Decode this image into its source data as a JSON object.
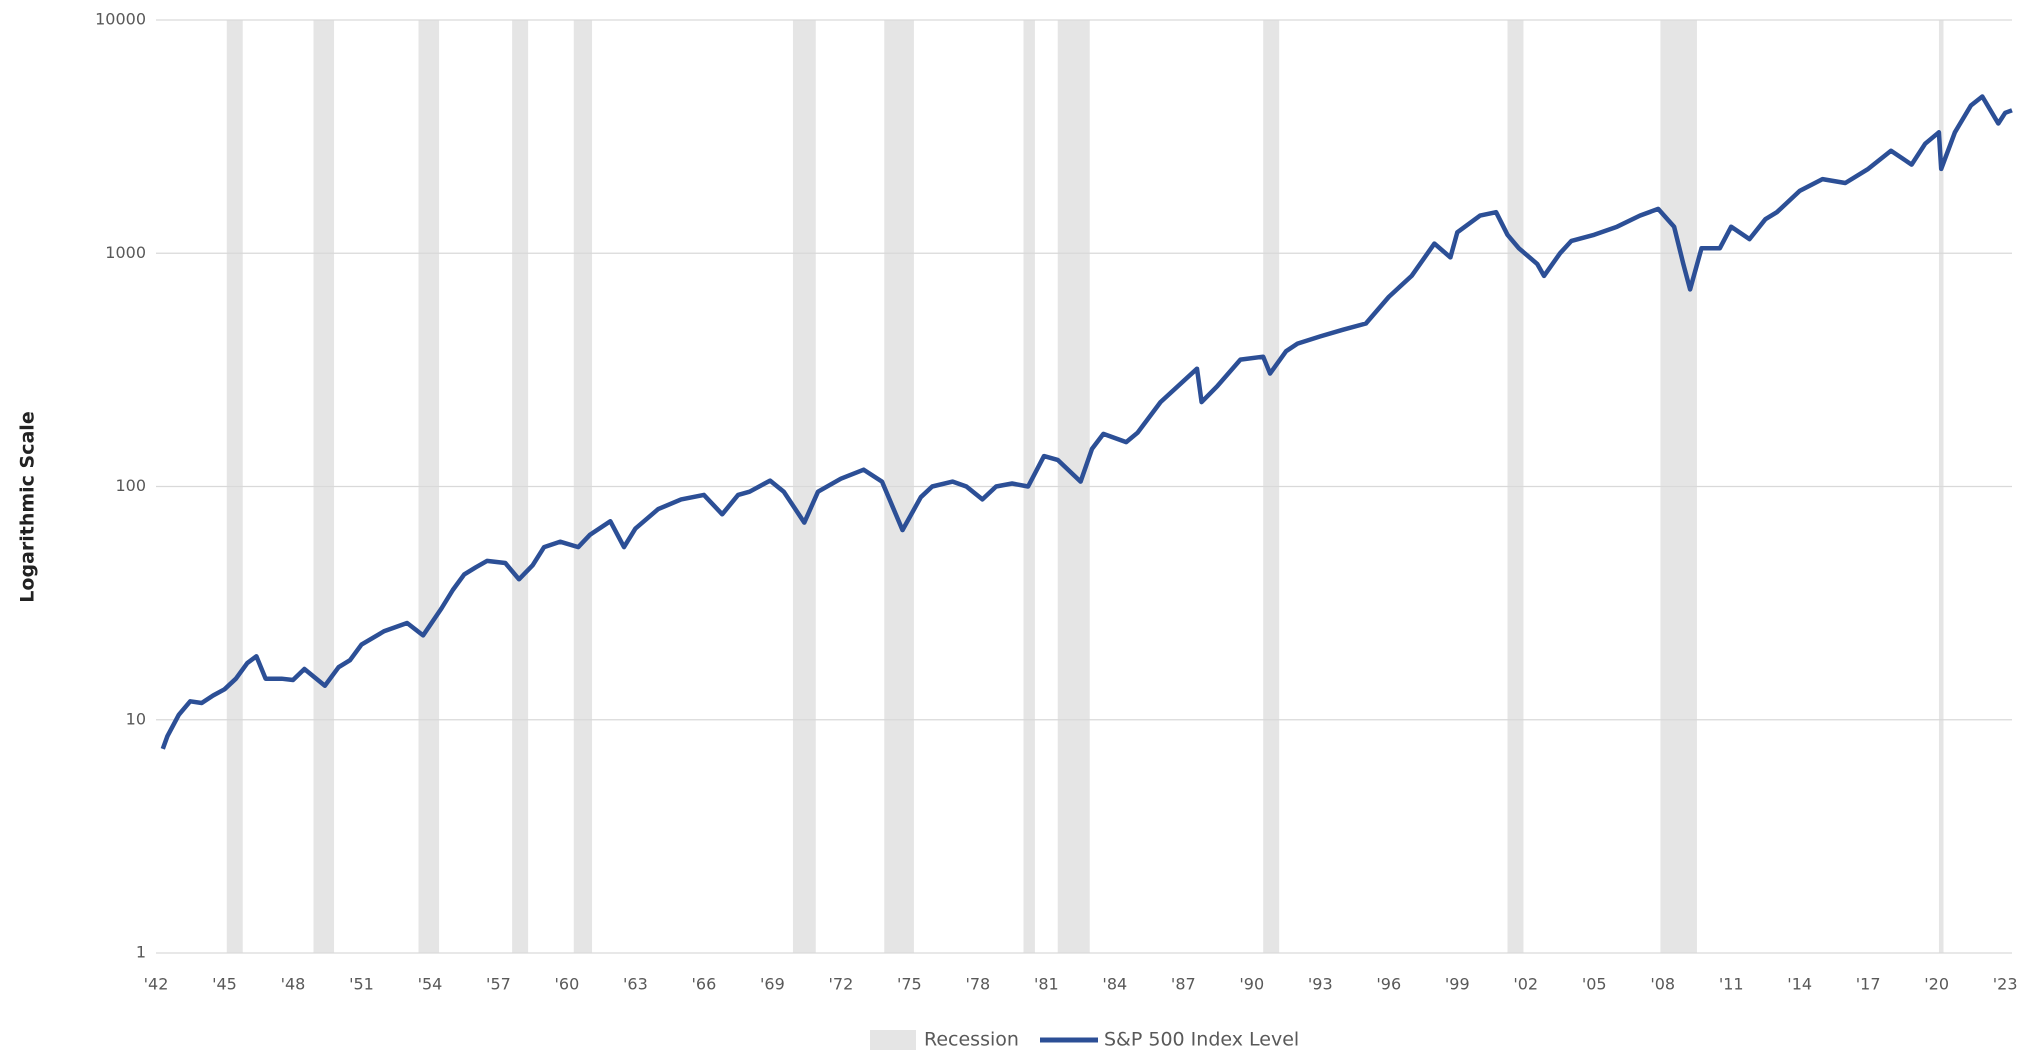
{
  "chart_data": {
    "type": "line",
    "y_label": "Logarithmic Scale",
    "log_y": true,
    "grid": true,
    "legend": "bottom",
    "ylim": [
      1,
      10000
    ],
    "yticks": [
      1,
      10,
      100,
      1000,
      10000
    ],
    "xlim": [
      1942,
      2023.3
    ],
    "xticks": [
      {
        "value": 1942,
        "label": "'42"
      },
      {
        "value": 1945,
        "label": "'45"
      },
      {
        "value": 1948,
        "label": "'48"
      },
      {
        "value": 1951,
        "label": "'51"
      },
      {
        "value": 1954,
        "label": "'54"
      },
      {
        "value": 1957,
        "label": "'57"
      },
      {
        "value": 1960,
        "label": "'60"
      },
      {
        "value": 1963,
        "label": "'63"
      },
      {
        "value": 1966,
        "label": "'66"
      },
      {
        "value": 1969,
        "label": "'69"
      },
      {
        "value": 1972,
        "label": "'72"
      },
      {
        "value": 1975,
        "label": "'75"
      },
      {
        "value": 1978,
        "label": "'78"
      },
      {
        "value": 1981,
        "label": "'81"
      },
      {
        "value": 1984,
        "label": "'84"
      },
      {
        "value": 1987,
        "label": "'87"
      },
      {
        "value": 1990,
        "label": "'90"
      },
      {
        "value": 1993,
        "label": "'93"
      },
      {
        "value": 1996,
        "label": "'96"
      },
      {
        "value": 1999,
        "label": "'99"
      },
      {
        "value": 2002,
        "label": "'02"
      },
      {
        "value": 2005,
        "label": "'05"
      },
      {
        "value": 2008,
        "label": "'08"
      },
      {
        "value": 2011,
        "label": "'11"
      },
      {
        "value": 2014,
        "label": "'14"
      },
      {
        "value": 2017,
        "label": "'17"
      },
      {
        "value": 2020,
        "label": "'20"
      },
      {
        "value": 2023,
        "label": "'23"
      }
    ],
    "recessions": {
      "name": "Recession",
      "color": "#e5e5e5",
      "bands": [
        [
          1945.1,
          1945.8
        ],
        [
          1948.9,
          1949.8
        ],
        [
          1953.5,
          1954.4
        ],
        [
          1957.6,
          1958.3
        ],
        [
          1960.3,
          1961.1
        ],
        [
          1969.9,
          1970.9
        ],
        [
          1973.9,
          1975.2
        ],
        [
          1980.0,
          1980.5
        ],
        [
          1981.5,
          1982.9
        ],
        [
          1990.5,
          1991.2
        ],
        [
          2001.2,
          2001.9
        ],
        [
          2007.9,
          2009.5
        ],
        [
          2020.1,
          2020.3
        ]
      ]
    },
    "x": [
      1942.3,
      1942.5,
      1943,
      1943.5,
      1944,
      1944.5,
      1945,
      1945.5,
      1946,
      1946.4,
      1946.8,
      1947.5,
      1948,
      1948.5,
      1949.4,
      1950,
      1950.5,
      1951,
      1952,
      1953,
      1953.7,
      1954.5,
      1955,
      1955.5,
      1956,
      1956.5,
      1957.3,
      1957.9,
      1958.5,
      1959,
      1959.7,
      1960.5,
      1961,
      1961.9,
      1962.5,
      1963,
      1964,
      1965,
      1966,
      1966.8,
      1967.5,
      1968,
      1968.9,
      1969.5,
      1970.4,
      1971,
      1972,
      1973,
      1973.8,
      1974.7,
      1975.5,
      1976,
      1976.9,
      1977.5,
      1978.2,
      1978.8,
      1979.5,
      1980.2,
      1980.9,
      1981.5,
      1982.5,
      1983,
      1983.5,
      1984.5,
      1985,
      1986,
      1987.6,
      1987.8,
      1988.5,
      1989.5,
      1990.5,
      1990.8,
      1991.5,
      1992,
      1993,
      1994,
      1995,
      1996,
      1997,
      1998,
      1998.7,
      1999,
      2000,
      2000.7,
      2001.2,
      2001.7,
      2002.5,
      2002.8,
      2003.5,
      2004,
      2005,
      2006,
      2007,
      2007.8,
      2008.5,
      2008.9,
      2009.2,
      2009.7,
      2010.5,
      2011,
      2011.8,
      2012.5,
      2013,
      2014,
      2015,
      2016,
      2017,
      2018,
      2018.9,
      2019.5,
      2020.1,
      2020.2,
      2020.8,
      2021.5,
      2022,
      2022.7,
      2023,
      2023.3
    ],
    "series": [
      {
        "name": "S&P 500 Index Level",
        "color": "#2c4f96",
        "values": [
          7.5,
          8.5,
          10.5,
          12,
          11.8,
          12.7,
          13.5,
          15,
          17.5,
          18.7,
          15,
          15,
          14.8,
          16.5,
          14,
          16.8,
          18,
          21,
          24,
          26,
          23,
          30,
          36,
          42,
          45,
          48,
          47,
          40,
          46,
          55,
          58,
          55,
          62,
          71,
          55,
          66,
          80,
          88,
          92,
          76,
          92,
          95,
          106,
          95,
          70,
          95,
          108,
          118,
          105,
          65,
          90,
          100,
          105,
          100,
          88,
          100,
          103,
          100,
          135,
          130,
          105,
          145,
          168,
          155,
          170,
          230,
          320,
          230,
          270,
          350,
          360,
          305,
          380,
          410,
          440,
          470,
          500,
          650,
          800,
          1100,
          960,
          1230,
          1450,
          1500,
          1200,
          1050,
          900,
          800,
          1000,
          1130,
          1200,
          1300,
          1450,
          1550,
          1300,
          900,
          700,
          1050,
          1050,
          1300,
          1150,
          1400,
          1500,
          1850,
          2080,
          2000,
          2300,
          2750,
          2400,
          2950,
          3300,
          2300,
          3300,
          4300,
          4700,
          3600,
          4000,
          4100
        ]
      }
    ]
  }
}
